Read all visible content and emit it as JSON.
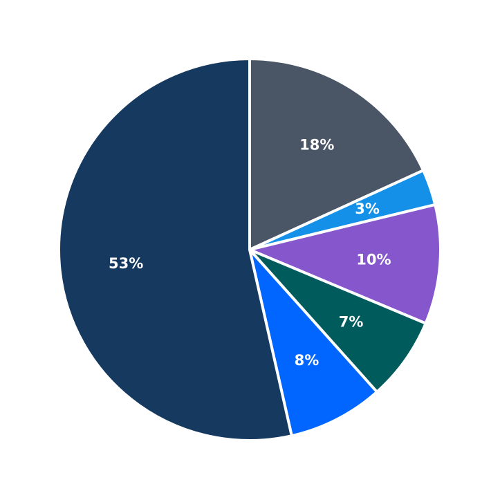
{
  "chart_data": {
    "type": "pie",
    "start_angle": "12 o'clock",
    "direction": "clockwise",
    "legend": "none",
    "slices": [
      {
        "value": 18,
        "label": "18%",
        "color": "#4a5565"
      },
      {
        "value": 3,
        "label": "3%",
        "color": "#1590e8"
      },
      {
        "value": 10,
        "label": "10%",
        "color": "#8656cc"
      },
      {
        "value": 7,
        "label": "7%",
        "color": "#005c5c"
      },
      {
        "value": 8,
        "label": "8%",
        "color": "#0066ff"
      },
      {
        "value": 53,
        "label": "53%",
        "color": "#15395f"
      }
    ]
  }
}
